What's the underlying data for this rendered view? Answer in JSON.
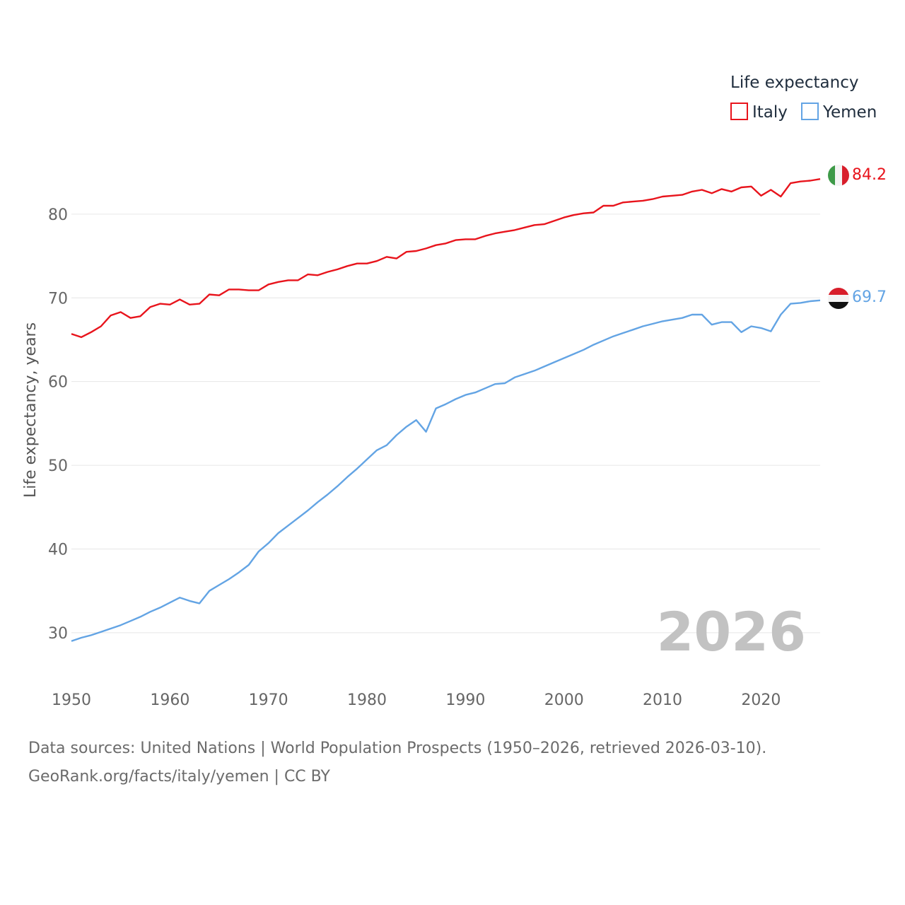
{
  "legend": {
    "title": "Life expectancy",
    "items": [
      "Italy",
      "Yemen"
    ]
  },
  "footer": {
    "sources": "Data sources: United Nations | World Population Prospects (1950–2026, retrieved 2026-03-10).",
    "credit": "GeoRank.org/facts/italy/yemen | CC BY"
  },
  "colors": {
    "italy": "#e8141c",
    "yemen": "#63a4e4",
    "grid": "#e6e6e6"
  },
  "chart_data": {
    "type": "line",
    "title": "Life expectancy",
    "xlabel": "",
    "ylabel": "Life expectancy, years",
    "xlim": [
      1950,
      2026
    ],
    "ylim": [
      24.5,
      87
    ],
    "xticks": [
      1950,
      1960,
      1970,
      1980,
      1990,
      2000,
      2010,
      2020
    ],
    "yticks": [
      30,
      40,
      50,
      60,
      70,
      80
    ],
    "year_label": "2026",
    "x": [
      1950,
      1951,
      1952,
      1953,
      1954,
      1955,
      1956,
      1957,
      1958,
      1959,
      1960,
      1961,
      1962,
      1963,
      1964,
      1965,
      1966,
      1967,
      1968,
      1969,
      1970,
      1971,
      1972,
      1973,
      1974,
      1975,
      1976,
      1977,
      1978,
      1979,
      1980,
      1981,
      1982,
      1983,
      1984,
      1985,
      1986,
      1987,
      1988,
      1989,
      1990,
      1991,
      1992,
      1993,
      1994,
      1995,
      1996,
      1997,
      1998,
      1999,
      2000,
      2001,
      2002,
      2003,
      2004,
      2005,
      2006,
      2007,
      2008,
      2009,
      2010,
      2011,
      2012,
      2013,
      2014,
      2015,
      2016,
      2017,
      2018,
      2019,
      2020,
      2021,
      2022,
      2023,
      2024,
      2025,
      2026
    ],
    "series": [
      {
        "name": "Italy",
        "color": "#e8141c",
        "end_label": "84.2",
        "values": [
          65.7,
          65.3,
          65.9,
          66.6,
          67.9,
          68.3,
          67.6,
          67.8,
          68.9,
          69.3,
          69.2,
          69.8,
          69.2,
          69.3,
          70.4,
          70.3,
          71.0,
          71.0,
          70.9,
          70.9,
          71.6,
          71.9,
          72.1,
          72.1,
          72.8,
          72.7,
          73.1,
          73.4,
          73.8,
          74.1,
          74.1,
          74.4,
          74.9,
          74.7,
          75.5,
          75.6,
          75.9,
          76.3,
          76.5,
          76.9,
          77.0,
          77.0,
          77.4,
          77.7,
          77.9,
          78.1,
          78.4,
          78.7,
          78.8,
          79.2,
          79.6,
          79.9,
          80.1,
          80.2,
          81.0,
          81.0,
          81.4,
          81.5,
          81.6,
          81.8,
          82.1,
          82.2,
          82.3,
          82.7,
          82.9,
          82.5,
          83.0,
          82.7,
          83.2,
          83.3,
          82.2,
          82.9,
          82.1,
          83.7,
          83.9,
          84.0,
          84.2
        ]
      },
      {
        "name": "Yemen",
        "color": "#63a4e4",
        "end_label": "69.7",
        "values": [
          29.0,
          29.4,
          29.7,
          30.1,
          30.5,
          30.9,
          31.4,
          31.9,
          32.5,
          33.0,
          33.6,
          34.2,
          33.8,
          33.5,
          35.0,
          35.7,
          36.4,
          37.2,
          38.1,
          39.7,
          40.7,
          41.9,
          42.8,
          43.7,
          44.6,
          45.6,
          46.5,
          47.5,
          48.6,
          49.6,
          50.7,
          51.8,
          52.4,
          53.6,
          54.6,
          55.4,
          54.0,
          56.8,
          57.3,
          57.9,
          58.4,
          58.7,
          59.2,
          59.7,
          59.8,
          60.5,
          60.9,
          61.3,
          61.8,
          62.3,
          62.8,
          63.3,
          63.8,
          64.4,
          64.9,
          65.4,
          65.8,
          66.2,
          66.6,
          66.9,
          67.2,
          67.4,
          67.6,
          68.0,
          68.0,
          66.8,
          67.1,
          67.1,
          65.9,
          66.6,
          66.4,
          66.0,
          68.0,
          69.3,
          69.4,
          69.6,
          69.7
        ]
      }
    ]
  }
}
